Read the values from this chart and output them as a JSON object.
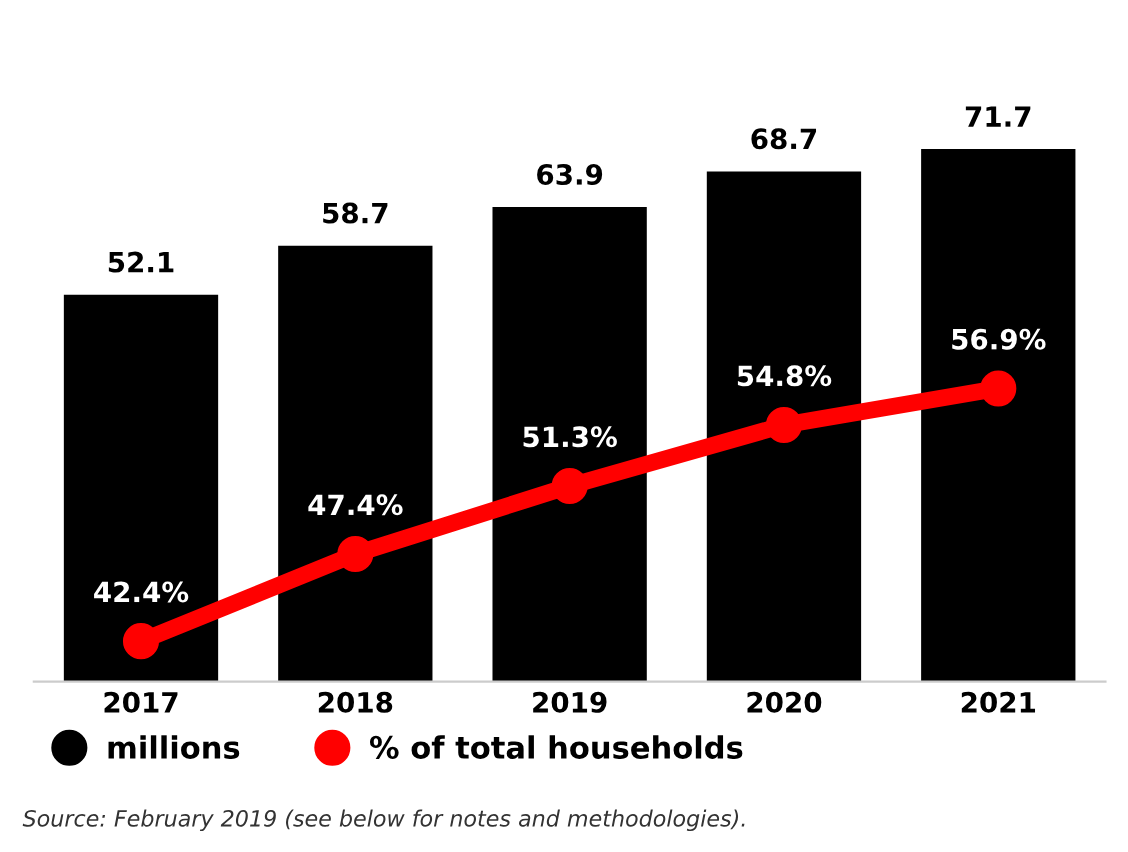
{
  "chart_data": {
    "type": "bar",
    "categories": [
      "2017",
      "2018",
      "2019",
      "2020",
      "2021"
    ],
    "series": [
      {
        "name": "millions",
        "color": "#000000",
        "values": [
          52.1,
          58.7,
          63.9,
          68.7,
          71.7
        ],
        "value_labels": [
          "52.1",
          "58.7",
          "63.9",
          "68.7",
          "71.7"
        ]
      },
      {
        "name": "% of total households",
        "type": "line",
        "axis": "y2",
        "color": "#ff0000",
        "marker": "circle",
        "values": [
          42.4,
          47.4,
          51.3,
          54.8,
          56.9
        ],
        "value_labels": [
          "42.4%",
          "47.4%",
          "51.3%",
          "54.8%",
          "56.9%"
        ]
      }
    ],
    "tick_labels": "x",
    "grid": false,
    "legend": "bottom",
    "annotations": [
      "Source: February 2019 (see below for notes and methodologies)."
    ]
  }
}
